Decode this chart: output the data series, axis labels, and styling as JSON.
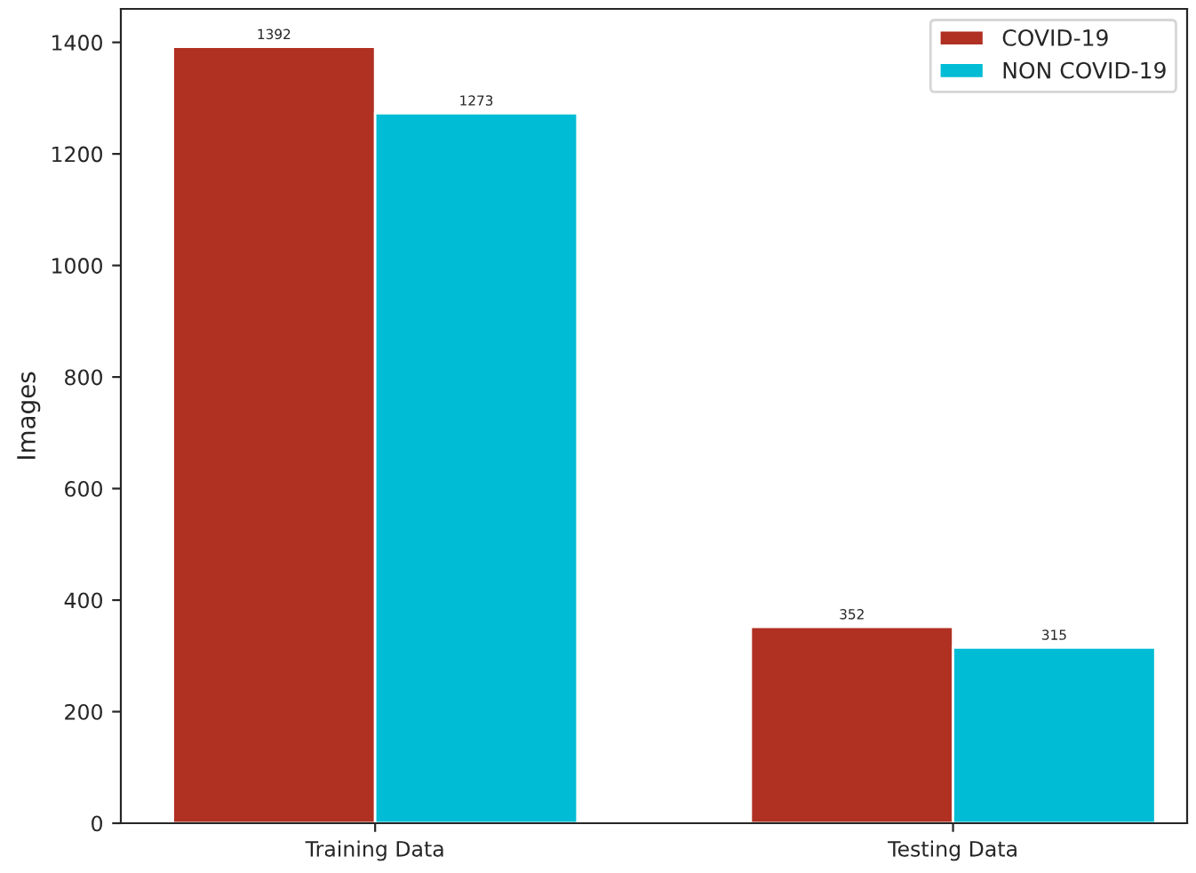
{
  "chart_data": {
    "type": "bar",
    "ylabel": "Images",
    "categories": [
      "Training Data",
      "Testing Data"
    ],
    "series": [
      {
        "name": "COVID-19",
        "color": "#b03022",
        "values": [
          1392,
          352
        ]
      },
      {
        "name": "NON COVID-19",
        "color": "#00bcd4",
        "values": [
          1273,
          315
        ]
      }
    ],
    "ylim": [
      0,
      1460
    ],
    "yticks": [
      0,
      200,
      400,
      600,
      800,
      1000,
      1200,
      1400
    ],
    "data_labels": true,
    "legend": "top right",
    "grid": false
  }
}
